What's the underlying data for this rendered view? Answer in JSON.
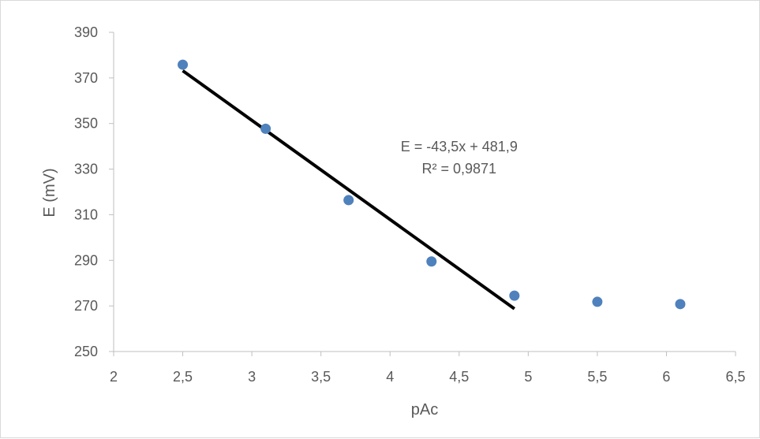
{
  "chart_data": {
    "type": "scatter",
    "title": "",
    "xlabel": "pAc",
    "ylabel": "E (mV)",
    "xlim": [
      2,
      6.5
    ],
    "ylim": [
      250,
      390
    ],
    "x_ticks": [
      "2",
      "2,5",
      "3",
      "3,5",
      "4",
      "4,5",
      "5",
      "5,5",
      "6",
      "6,5"
    ],
    "y_ticks": [
      "250",
      "270",
      "290",
      "310",
      "330",
      "350",
      "370",
      "390"
    ],
    "x_tick_values": [
      2,
      2.5,
      3,
      3.5,
      4,
      4.5,
      5,
      5.5,
      6,
      6.5
    ],
    "y_tick_values": [
      250,
      270,
      290,
      310,
      330,
      350,
      370,
      390
    ],
    "grid": false,
    "legend": "none",
    "series": [
      {
        "color": "#4f81bd",
        "points": [
          {
            "x": 2.5,
            "y": 375.8
          },
          {
            "x": 3.1,
            "y": 347.7
          },
          {
            "x": 3.7,
            "y": 316.4
          },
          {
            "x": 4.3,
            "y": 289.5
          },
          {
            "x": 4.9,
            "y": 274.5
          },
          {
            "x": 5.5,
            "y": 271.8
          },
          {
            "x": 6.1,
            "y": 270.8
          }
        ]
      }
    ],
    "trendline": {
      "slope": -43.5,
      "intercept": 481.9,
      "x_range": [
        2.5,
        4.9
      ],
      "color": "#000000"
    },
    "annotations": {
      "equation": "E = -43,5x + 481,9",
      "r_squared": "R² = 0,9871"
    }
  }
}
